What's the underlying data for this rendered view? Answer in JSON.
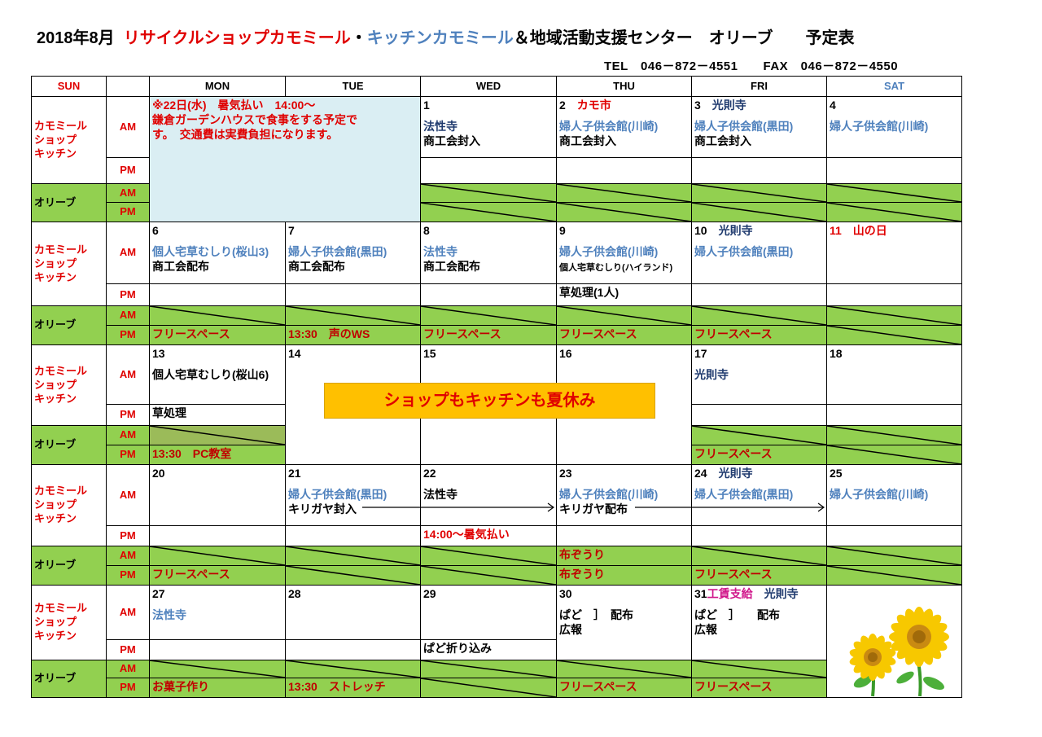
{
  "title": {
    "date": "2018年8月",
    "shop": "リサイクルショップカモミール",
    "sep": "・",
    "kitchen": "キッチンカモミール",
    "rest": "＆地域活動支援センター　オリーブ　　予定表"
  },
  "contact": "TEL　046－872－4551　　FAX　046－872－4550",
  "colors": {
    "green": "#92d050",
    "dark_green": "#9bbb59",
    "note_bg": "#daeef3",
    "banner_bg": "#ffc000",
    "red": "#e00000",
    "blue": "#4f81bd"
  },
  "headers": [
    "SUN",
    "",
    "MON",
    "TUE",
    "WED",
    "THU",
    "FRI",
    "SAT"
  ],
  "labels": {
    "kamomile": [
      "カモミール",
      "ショップ",
      "キッチン"
    ],
    "olive": "オリーブ",
    "am": "AM",
    "pm": "PM"
  },
  "note": [
    "※22日(水)　暑気払い　14:00～",
    "鎌倉ガーデンハウスで食事をする予定で",
    "す。　交通費は実費負担になります。"
  ],
  "banner": "ショップもキッチンも夏休み",
  "sunflower_icon": "sunflower-illustration",
  "weeks": [
    {
      "am": [
        null,
        null,
        [
          [
            [
              "1",
              "k"
            ]
          ],
          [
            [
              "法性寺",
              "n"
            ]
          ],
          [
            [
              "商工会封入",
              "k"
            ]
          ]
        ],
        [
          [
            [
              "2　",
              "k"
            ],
            [
              "カモ市",
              "r"
            ]
          ],
          [
            [
              "婦人子供会館(川崎)",
              "b"
            ]
          ],
          [
            [
              "商工会封入",
              "k"
            ]
          ]
        ],
        [
          [
            [
              "3　",
              "k"
            ],
            [
              "光則寺",
              "n"
            ]
          ],
          [
            [
              "婦人子供会館(黒田)",
              "b"
            ]
          ],
          [
            [
              "商工会封入",
              "k"
            ]
          ]
        ],
        [
          [
            [
              "4",
              "k"
            ]
          ],
          [
            [
              "婦人子供会館(川崎)",
              "b"
            ]
          ]
        ]
      ],
      "pm": [
        null,
        null,
        null,
        null,
        null,
        null
      ],
      "oam": [
        null,
        null,
        true,
        true,
        true,
        true
      ],
      "opm": [
        null,
        null,
        true,
        true,
        true,
        true
      ]
    },
    {
      "am": [
        [
          [
            [
              "6",
              "k"
            ]
          ],
          [
            [
              "個人宅草むしり(桜山3)",
              "b"
            ]
          ],
          [
            [
              "商工会配布",
              "k"
            ]
          ]
        ],
        [
          [
            [
              "7",
              "k"
            ]
          ],
          [
            [
              "婦人子供会館(黒田)",
              "b"
            ]
          ],
          [
            [
              "商工会配布",
              "k"
            ]
          ]
        ],
        [
          [
            [
              "8",
              "k"
            ]
          ],
          [
            [
              "法性寺",
              "b"
            ]
          ],
          [
            [
              "商工会配布",
              "k"
            ]
          ]
        ],
        [
          [
            [
              "9",
              "k"
            ]
          ],
          [
            [
              "婦人子供会館(川崎)",
              "b"
            ]
          ],
          [
            [
              "個人宅草むしり(ハイランド)",
              "k"
            ]
          ]
        ],
        [
          [
            [
              "10　",
              "k"
            ],
            [
              "光則寺",
              "n"
            ]
          ],
          [
            [
              "婦人子供会館(黒田)",
              "b"
            ]
          ]
        ],
        [
          [
            [
              "11　山の日",
              "r"
            ]
          ]
        ]
      ],
      "pm": [
        null,
        null,
        null,
        [
          [
            [
              "草処理(1人)",
              "k"
            ]
          ]
        ],
        null,
        null
      ],
      "oam": [
        true,
        true,
        true,
        true,
        true,
        true
      ],
      "opm": [
        [
          [
            [
              "フリースペース",
              "dr"
            ]
          ]
        ],
        [
          [
            [
              "13:30　声のWS",
              "dr"
            ]
          ]
        ],
        [
          [
            [
              "フリースペース",
              "dr"
            ]
          ]
        ],
        [
          [
            [
              "フリースペース",
              "dr"
            ]
          ]
        ],
        [
          [
            [
              "フリースペース",
              "dr"
            ]
          ]
        ],
        true
      ]
    },
    {
      "am": [
        [
          [
            [
              "13",
              "k"
            ]
          ],
          [
            [
              "個人宅草むしり(桜山6)",
              "k"
            ]
          ]
        ],
        [
          [
            [
              "14",
              "k"
            ]
          ]
        ],
        [
          [
            [
              "15",
              "k"
            ]
          ]
        ],
        [
          [
            [
              "16",
              "k"
            ]
          ]
        ],
        [
          [
            [
              "17",
              "k"
            ]
          ],
          [
            [
              "光則寺",
              "n"
            ]
          ]
        ],
        [
          [
            [
              "18",
              "k"
            ]
          ]
        ]
      ],
      "pm": [
        [
          [
            [
              "草処理",
              "k"
            ]
          ]
        ],
        null,
        null,
        null,
        null,
        null
      ],
      "oam": [
        true,
        null,
        null,
        null,
        true,
        true
      ],
      "opm": [
        [
          [
            [
              "13:30　PC教室",
              "dr"
            ]
          ]
        ],
        null,
        null,
        null,
        [
          [
            [
              "フリースペース",
              "dr"
            ]
          ]
        ],
        true
      ]
    },
    {
      "am": [
        [
          [
            [
              "20",
              "k"
            ]
          ]
        ],
        [
          [
            [
              "21",
              "k"
            ]
          ],
          [
            [
              "婦人子供会館(黒田)",
              "b"
            ]
          ],
          [
            [
              "キリガヤ封入",
              "k"
            ]
          ]
        ],
        [
          [
            [
              "22",
              "k"
            ]
          ],
          [
            [
              "法性寺",
              "k"
            ]
          ]
        ],
        [
          [
            [
              "23",
              "k"
            ]
          ],
          [
            [
              "婦人子供会館(川崎)",
              "b"
            ]
          ],
          [
            [
              "キリガヤ配布",
              "k"
            ]
          ]
        ],
        [
          [
            [
              "24　",
              "k"
            ],
            [
              "光則寺",
              "n"
            ]
          ],
          [
            [
              "婦人子供会館(黒田)",
              "b"
            ]
          ]
        ],
        [
          [
            [
              "25",
              "k"
            ]
          ],
          [
            [
              "婦人子供会館(川崎)",
              "b"
            ]
          ]
        ]
      ],
      "pm": [
        null,
        null,
        [
          [
            [
              "14:00～暑気払い",
              "r"
            ]
          ]
        ],
        null,
        null,
        null
      ],
      "oam": [
        true,
        true,
        true,
        [
          [
            [
              "布ぞうり",
              "dr"
            ]
          ]
        ],
        true,
        true
      ],
      "opm": [
        [
          [
            [
              "フリースペース",
              "dr"
            ]
          ]
        ],
        true,
        true,
        [
          [
            [
              "布ぞうり",
              "dr"
            ]
          ]
        ],
        [
          [
            [
              "フリースペース",
              "dr"
            ]
          ]
        ],
        true
      ]
    },
    {
      "am": [
        [
          [
            [
              "27",
              "k"
            ]
          ],
          [
            [
              "法性寺",
              "b"
            ]
          ]
        ],
        [
          [
            [
              "28",
              "k"
            ]
          ]
        ],
        [
          [
            [
              "29",
              "k"
            ]
          ]
        ],
        [
          [
            [
              "30",
              "k"
            ]
          ],
          [
            [
              "ぱど　］　配布",
              "k"
            ]
          ],
          [
            [
              "広報",
              "k"
            ]
          ]
        ],
        [
          [
            [
              "31",
              "k"
            ],
            [
              "工賃支給",
              "m"
            ],
            [
              "　光則寺",
              "n"
            ]
          ],
          [
            [
              "ぱど　］　　配布",
              "k"
            ]
          ],
          [
            [
              "広報",
              "k"
            ]
          ]
        ],
        null
      ],
      "pm": [
        null,
        null,
        [
          [
            [
              "ぱど折り込み",
              "k"
            ]
          ]
        ],
        null,
        null,
        null
      ],
      "oam": [
        true,
        true,
        true,
        true,
        true,
        null
      ],
      "opm": [
        [
          [
            [
              "お菓子作り",
              "dr"
            ]
          ]
        ],
        [
          [
            [
              "13:30　ストレッチ",
              "dr"
            ]
          ]
        ],
        true,
        [
          [
            [
              "フリースペース",
              "dr"
            ]
          ]
        ],
        [
          [
            [
              "フリースペース",
              "dr"
            ]
          ]
        ],
        null
      ]
    }
  ]
}
